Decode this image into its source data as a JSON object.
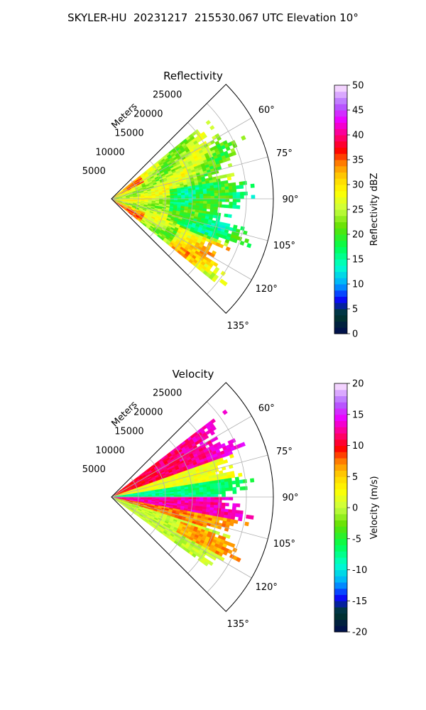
{
  "suptitle": "SKYLER-HU  20231217  215530.067 UTC Elevation 10°",
  "chart_data": [
    {
      "type": "heatmap",
      "title": "Reflectivity",
      "radial_label": "Meters",
      "radial_ticks": [
        "5000",
        "10000",
        "15000",
        "20000",
        "25000"
      ],
      "radial_range": [
        0,
        30000
      ],
      "angle_range_deg": [
        45,
        135
      ],
      "angle_ticks": [
        "60°",
        "75°",
        "90°",
        "105°",
        "120°",
        "135°"
      ],
      "grid": true,
      "colorbar": {
        "label": "Reflectivity dBZ",
        "range": [
          0,
          50
        ],
        "ticks": [
          "0",
          "5",
          "10",
          "15",
          "20",
          "25",
          "30",
          "35",
          "40",
          "45",
          "50"
        ]
      }
    },
    {
      "type": "heatmap",
      "title": "Velocity",
      "radial_label": "Meters",
      "radial_ticks": [
        "5000",
        "10000",
        "15000",
        "20000",
        "25000"
      ],
      "radial_range": [
        0,
        30000
      ],
      "angle_range_deg": [
        45,
        135
      ],
      "angle_ticks": [
        "60°",
        "75°",
        "90°",
        "105°",
        "120°",
        "135°"
      ],
      "grid": true,
      "colorbar": {
        "label": "Velocity (m/s)",
        "range": [
          -20,
          20
        ],
        "ticks": [
          "-20",
          "-15",
          "-10",
          "-5",
          "0",
          "5",
          "10",
          "15",
          "20"
        ]
      }
    }
  ]
}
